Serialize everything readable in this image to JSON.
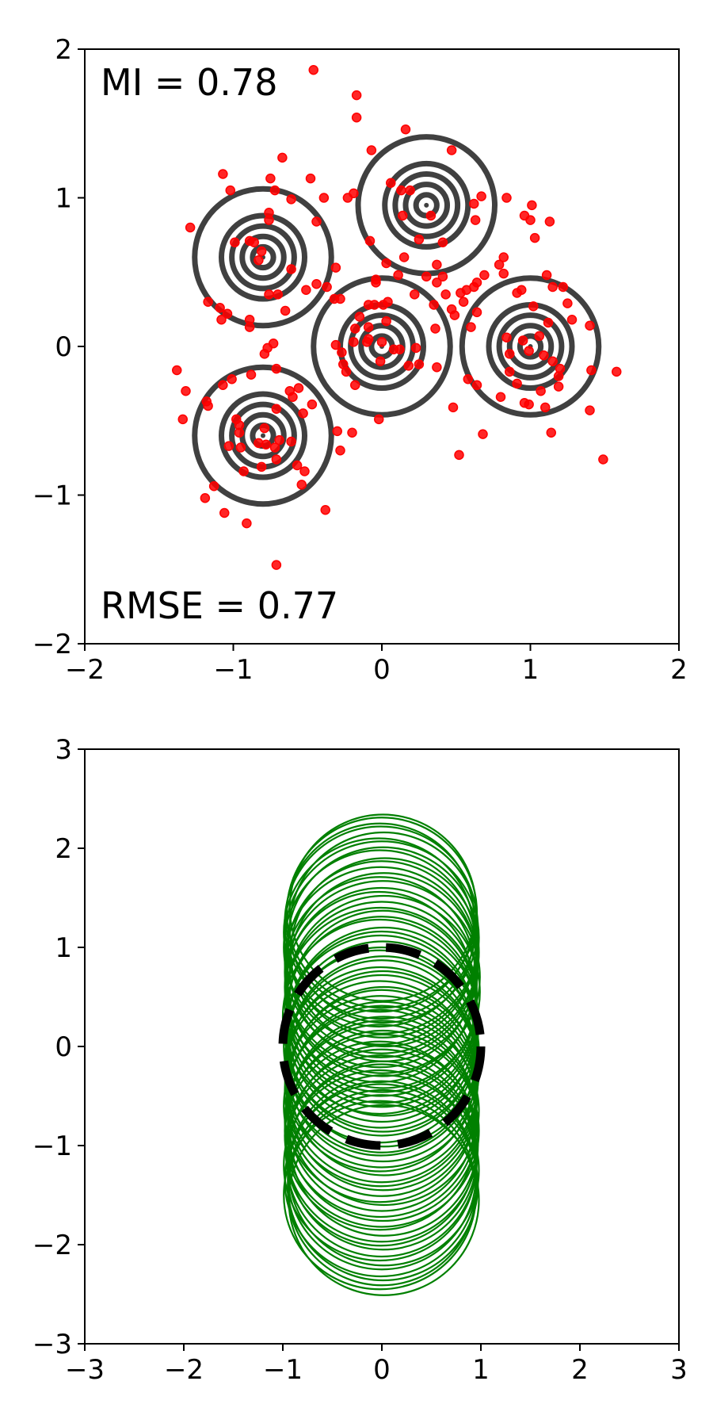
{
  "chart_data": [
    {
      "type": "scatter",
      "panel": "top",
      "xlim": [
        -2,
        2
      ],
      "ylim": [
        -2,
        2
      ],
      "xticks": [
        -2,
        -1,
        0,
        1,
        2
      ],
      "yticks": [
        -2,
        -1,
        0,
        1,
        2
      ],
      "grid": false,
      "annotations": {
        "mi": "MI = 0.78",
        "rmse": "RMSE = 0.77"
      },
      "colors": {
        "points": "#ff0000",
        "contours": "#404040"
      },
      "contour_centers": [
        {
          "x": -0.8,
          "y": 0.6
        },
        {
          "x": 0.3,
          "y": 0.95
        },
        {
          "x": 0.0,
          "y": 0.0
        },
        {
          "x": 1.0,
          "y": 0.0
        },
        {
          "x": -0.8,
          "y": -0.6
        }
      ],
      "contour_radii": [
        0.07,
        0.14,
        0.21,
        0.28
      ],
      "outer_radius": 0.46,
      "points": [
        [
          -0.46,
          1.86
        ],
        [
          -0.17,
          1.69
        ],
        [
          -0.17,
          1.54
        ],
        [
          0.16,
          1.46
        ],
        [
          -0.07,
          1.32
        ],
        [
          0.47,
          1.32
        ],
        [
          -0.67,
          1.27
        ],
        [
          0.06,
          1.1
        ],
        [
          0.13,
          1.05
        ],
        [
          0.19,
          1.05
        ],
        [
          -1.07,
          1.16
        ],
        [
          -0.75,
          1.13
        ],
        [
          -0.48,
          1.13
        ],
        [
          -1.02,
          1.05
        ],
        [
          -0.72,
          1.05
        ],
        [
          -0.61,
          0.99
        ],
        [
          -0.39,
          1.0
        ],
        [
          -0.23,
          1.0
        ],
        [
          -0.19,
          1.03
        ],
        [
          0.67,
          1.01
        ],
        [
          0.84,
          1.0
        ],
        [
          1.01,
          0.95
        ],
        [
          0.62,
          0.96
        ],
        [
          -0.76,
          0.9
        ],
        [
          0.96,
          0.88
        ],
        [
          1.0,
          0.85
        ],
        [
          1.13,
          0.84
        ],
        [
          -1.29,
          0.8
        ],
        [
          -0.76,
          0.85
        ],
        [
          -0.44,
          0.84
        ],
        [
          0.14,
          0.88
        ],
        [
          0.33,
          0.88
        ],
        [
          0.63,
          0.85
        ],
        [
          1.03,
          0.73
        ],
        [
          -0.99,
          0.7
        ],
        [
          -0.89,
          0.71
        ],
        [
          -0.86,
          0.7
        ],
        [
          -0.08,
          0.71
        ],
        [
          -0.81,
          0.64
        ],
        [
          -0.83,
          0.58
        ],
        [
          0.25,
          0.72
        ],
        [
          0.41,
          0.7
        ],
        [
          0.82,
          0.6
        ],
        [
          0.79,
          0.55
        ],
        [
          0.15,
          0.6
        ],
        [
          0.37,
          0.55
        ],
        [
          -0.61,
          0.52
        ],
        [
          0.82,
          0.49
        ],
        [
          0.03,
          0.56
        ],
        [
          -0.31,
          0.53
        ],
        [
          -0.04,
          0.45
        ],
        [
          -0.04,
          0.43
        ],
        [
          0.11,
          0.48
        ],
        [
          0.3,
          0.47
        ],
        [
          0.41,
          0.47
        ],
        [
          0.37,
          0.43
        ],
        [
          0.69,
          0.48
        ],
        [
          0.64,
          0.43
        ],
        [
          -0.44,
          0.42
        ],
        [
          -0.51,
          0.38
        ],
        [
          -0.37,
          0.4
        ],
        [
          -0.32,
          0.32
        ],
        [
          -0.28,
          0.32
        ],
        [
          0.62,
          0.4
        ],
        [
          0.57,
          0.38
        ],
        [
          0.94,
          0.38
        ],
        [
          0.91,
          0.36
        ],
        [
          1.11,
          0.48
        ],
        [
          1.15,
          0.4
        ],
        [
          1.22,
          0.4
        ],
        [
          -0.76,
          0.35
        ],
        [
          -0.7,
          0.35
        ],
        [
          0.22,
          0.35
        ],
        [
          0.43,
          0.35
        ],
        [
          0.53,
          0.36
        ],
        [
          0.55,
          0.3
        ],
        [
          -1.17,
          0.3
        ],
        [
          -1.09,
          0.26
        ],
        [
          -0.05,
          0.28
        ],
        [
          -0.09,
          0.28
        ],
        [
          0.01,
          0.28
        ],
        [
          0.04,
          0.3
        ],
        [
          0.35,
          0.28
        ],
        [
          0.47,
          0.25
        ],
        [
          -1.08,
          0.18
        ],
        [
          -1.04,
          0.22
        ],
        [
          -0.89,
          0.18
        ],
        [
          -0.65,
          0.24
        ],
        [
          -0.15,
          0.2
        ],
        [
          -0.18,
          0.12
        ],
        [
          0.36,
          0.12
        ],
        [
          0.49,
          0.21
        ],
        [
          0.64,
          0.23
        ],
        [
          1.02,
          0.27
        ],
        [
          1.25,
          0.29
        ],
        [
          0.6,
          0.13
        ],
        [
          1.28,
          0.18
        ],
        [
          -0.89,
          0.13
        ],
        [
          -0.09,
          0.13
        ],
        [
          0.03,
          0.17
        ],
        [
          1.12,
          0.16
        ],
        [
          1.4,
          0.14
        ],
        [
          -0.09,
          0.05
        ],
        [
          -0.1,
          0.03
        ],
        [
          -0.73,
          0.02
        ],
        [
          0.0,
          0.03
        ],
        [
          0.08,
          -0.02
        ],
        [
          0.12,
          -0.02
        ],
        [
          0.23,
          -0.01
        ],
        [
          0.84,
          0.06
        ],
        [
          0.95,
          0.04
        ],
        [
          1.06,
          0.07
        ],
        [
          -0.31,
          0.01
        ],
        [
          -0.27,
          -0.04
        ],
        [
          -0.77,
          -0.01
        ],
        [
          -0.19,
          0.03
        ],
        [
          -0.79,
          -0.05
        ],
        [
          0.86,
          -0.05
        ],
        [
          0.99,
          -0.03
        ],
        [
          1.09,
          -0.06
        ],
        [
          -0.26,
          -0.12
        ],
        [
          -0.24,
          -0.17
        ],
        [
          -0.01,
          -0.1
        ],
        [
          0.37,
          -0.14
        ],
        [
          1.15,
          -0.1
        ],
        [
          1.2,
          -0.15
        ],
        [
          1.19,
          -0.2
        ],
        [
          -1.38,
          -0.16
        ],
        [
          -1.01,
          -0.22
        ],
        [
          -0.88,
          -0.19
        ],
        [
          -0.71,
          -0.15
        ],
        [
          0.18,
          -0.13
        ],
        [
          0.25,
          -0.12
        ],
        [
          0.86,
          -0.17
        ],
        [
          1.41,
          -0.16
        ],
        [
          1.58,
          -0.17
        ],
        [
          -1.32,
          -0.3
        ],
        [
          -1.07,
          -0.26
        ],
        [
          -0.62,
          -0.3
        ],
        [
          -0.56,
          -0.28
        ],
        [
          -0.18,
          -0.26
        ],
        [
          0.58,
          -0.22
        ],
        [
          0.64,
          -0.26
        ],
        [
          0.91,
          -0.25
        ],
        [
          1.07,
          -0.3
        ],
        [
          1.19,
          -0.27
        ],
        [
          -1.18,
          -0.37
        ],
        [
          -0.6,
          -0.34
        ],
        [
          0.8,
          -0.34
        ],
        [
          0.96,
          -0.38
        ],
        [
          1.1,
          -0.41
        ],
        [
          -1.17,
          -0.4
        ],
        [
          -0.71,
          -0.42
        ],
        [
          -0.47,
          -0.39
        ],
        [
          0.48,
          -0.41
        ],
        [
          0.99,
          -0.39
        ],
        [
          1.4,
          -0.43
        ],
        [
          -1.34,
          -0.49
        ],
        [
          -0.98,
          -0.49
        ],
        [
          -0.53,
          -0.45
        ],
        [
          -0.96,
          -0.53
        ],
        [
          -0.79,
          -0.55
        ],
        [
          -0.3,
          -0.57
        ],
        [
          -0.02,
          -0.49
        ],
        [
          -0.96,
          -0.58
        ],
        [
          -0.2,
          -0.58
        ],
        [
          0.68,
          -0.59
        ],
        [
          1.14,
          -0.58
        ],
        [
          -0.83,
          -0.65
        ],
        [
          -0.69,
          -0.63
        ],
        [
          -0.61,
          -0.64
        ],
        [
          -1.03,
          -0.67
        ],
        [
          -0.95,
          -0.68
        ],
        [
          -0.78,
          -0.66
        ],
        [
          -0.72,
          -0.68
        ],
        [
          -0.28,
          -0.7
        ],
        [
          0.52,
          -0.73
        ],
        [
          -0.71,
          -0.76
        ],
        [
          -0.81,
          -0.81
        ],
        [
          -0.57,
          -0.8
        ],
        [
          -0.93,
          -0.84
        ],
        [
          -0.52,
          -0.84
        ],
        [
          -0.54,
          -0.93
        ],
        [
          -1.13,
          -0.94
        ],
        [
          -1.19,
          -1.02
        ],
        [
          -1.06,
          -1.12
        ],
        [
          -0.38,
          -1.1
        ],
        [
          -0.91,
          -1.19
        ],
        [
          -0.71,
          -1.47
        ],
        [
          1.49,
          -0.76
        ]
      ]
    },
    {
      "type": "line",
      "panel": "bottom",
      "xlim": [
        -3,
        3
      ],
      "ylim": [
        -3,
        3
      ],
      "xticks": [
        -3,
        -2,
        -1,
        0,
        1,
        2,
        3
      ],
      "yticks": [
        -3,
        -2,
        -1,
        0,
        1,
        2,
        3
      ],
      "grid": false,
      "colors": {
        "samples": "#008000",
        "reference": "#000000"
      },
      "reference_circle": {
        "cx": 0,
        "cy": 0,
        "r": 1,
        "style": "dashed"
      },
      "sample_circles": [
        {
          "cx": -0.02,
          "cy": 1.3,
          "rx": 0.95,
          "ry": 0.95
        },
        {
          "cx": 0.0,
          "cy": 1.35,
          "rx": 0.96,
          "ry": 0.96
        },
        {
          "cx": 0.01,
          "cy": 1.4,
          "rx": 0.94,
          "ry": 0.94
        },
        {
          "cx": -0.01,
          "cy": 1.25,
          "rx": 0.97,
          "ry": 0.97
        },
        {
          "cx": 0.02,
          "cy": 1.2,
          "rx": 0.95,
          "ry": 0.96
        },
        {
          "cx": -0.03,
          "cy": 1.15,
          "rx": 0.96,
          "ry": 0.95
        },
        {
          "cx": 0.0,
          "cy": 1.1,
          "rx": 0.98,
          "ry": 0.97
        },
        {
          "cx": 0.01,
          "cy": 1.05,
          "rx": 0.96,
          "ry": 0.96
        },
        {
          "cx": -0.02,
          "cy": 1.0,
          "rx": 0.97,
          "ry": 0.98
        },
        {
          "cx": 0.03,
          "cy": 0.95,
          "rx": 0.95,
          "ry": 0.95
        },
        {
          "cx": 0.0,
          "cy": 0.9,
          "rx": 0.96,
          "ry": 0.97
        },
        {
          "cx": -0.01,
          "cy": 0.85,
          "rx": 0.97,
          "ry": 0.96
        },
        {
          "cx": 0.02,
          "cy": 0.8,
          "rx": 0.95,
          "ry": 0.95
        },
        {
          "cx": -0.02,
          "cy": 0.75,
          "rx": 0.96,
          "ry": 0.96
        },
        {
          "cx": 0.01,
          "cy": 0.7,
          "rx": 0.98,
          "ry": 0.97
        },
        {
          "cx": 0.0,
          "cy": 0.65,
          "rx": 0.96,
          "ry": 0.95
        },
        {
          "cx": -0.03,
          "cy": 0.6,
          "rx": 0.95,
          "ry": 0.96
        },
        {
          "cx": 0.02,
          "cy": 0.55,
          "rx": 0.97,
          "ry": 0.97
        },
        {
          "cx": 0.0,
          "cy": 0.5,
          "rx": 0.96,
          "ry": 0.96
        },
        {
          "cx": -0.01,
          "cy": 0.45,
          "rx": 0.97,
          "ry": 0.95
        },
        {
          "cx": 0.01,
          "cy": 0.4,
          "rx": 0.95,
          "ry": 0.97
        },
        {
          "cx": 0.0,
          "cy": 0.35,
          "rx": 0.96,
          "ry": 0.96
        },
        {
          "cx": -0.02,
          "cy": 0.3,
          "rx": 0.98,
          "ry": 0.98
        },
        {
          "cx": 0.02,
          "cy": 0.25,
          "rx": 0.96,
          "ry": 0.95
        },
        {
          "cx": 0.0,
          "cy": 0.2,
          "rx": 0.95,
          "ry": 0.96
        },
        {
          "cx": -0.01,
          "cy": 0.15,
          "rx": 0.97,
          "ry": 0.97
        },
        {
          "cx": 0.01,
          "cy": 0.1,
          "rx": 0.96,
          "ry": 0.96
        },
        {
          "cx": 0.0,
          "cy": 0.05,
          "rx": 0.95,
          "ry": 0.95
        },
        {
          "cx": -0.02,
          "cy": 0.0,
          "rx": 0.97,
          "ry": 0.97
        },
        {
          "cx": 0.02,
          "cy": -0.05,
          "rx": 0.96,
          "ry": 0.96
        },
        {
          "cx": 0.0,
          "cy": -0.1,
          "rx": 0.95,
          "ry": 0.97
        },
        {
          "cx": -0.01,
          "cy": -0.15,
          "rx": 0.97,
          "ry": 0.95
        },
        {
          "cx": 0.01,
          "cy": -0.2,
          "rx": 0.96,
          "ry": 0.96
        },
        {
          "cx": 0.0,
          "cy": -0.25,
          "rx": 0.98,
          "ry": 0.97
        },
        {
          "cx": -0.02,
          "cy": -0.3,
          "rx": 0.96,
          "ry": 0.96
        },
        {
          "cx": 0.02,
          "cy": -0.35,
          "rx": 0.95,
          "ry": 0.95
        },
        {
          "cx": 0.0,
          "cy": -0.4,
          "rx": 0.96,
          "ry": 0.97
        },
        {
          "cx": -0.01,
          "cy": -0.45,
          "rx": 0.97,
          "ry": 0.96
        },
        {
          "cx": 0.01,
          "cy": -0.5,
          "rx": 0.95,
          "ry": 0.95
        },
        {
          "cx": 0.0,
          "cy": -0.55,
          "rx": 0.96,
          "ry": 0.96
        },
        {
          "cx": -0.02,
          "cy": -0.6,
          "rx": 0.97,
          "ry": 0.97
        },
        {
          "cx": 0.02,
          "cy": -0.65,
          "rx": 0.96,
          "ry": 0.95
        },
        {
          "cx": 0.0,
          "cy": -0.7,
          "rx": 0.95,
          "ry": 0.96
        },
        {
          "cx": -0.01,
          "cy": -0.75,
          "rx": 0.97,
          "ry": 0.97
        },
        {
          "cx": 0.01,
          "cy": -0.8,
          "rx": 0.96,
          "ry": 0.96
        },
        {
          "cx": 0.0,
          "cy": -0.85,
          "rx": 0.98,
          "ry": 0.97
        },
        {
          "cx": -0.02,
          "cy": -0.9,
          "rx": 0.96,
          "ry": 0.95
        },
        {
          "cx": 0.02,
          "cy": -0.95,
          "rx": 0.95,
          "ry": 0.96
        },
        {
          "cx": 0.0,
          "cy": -1.0,
          "rx": 0.97,
          "ry": 0.97
        },
        {
          "cx": -0.01,
          "cy": -1.05,
          "rx": 0.96,
          "ry": 0.96
        },
        {
          "cx": 0.01,
          "cy": -1.1,
          "rx": 0.95,
          "ry": 0.95
        },
        {
          "cx": 0.0,
          "cy": -1.15,
          "rx": 0.96,
          "ry": 0.97
        },
        {
          "cx": -0.02,
          "cy": -1.2,
          "rx": 0.97,
          "ry": 0.96
        },
        {
          "cx": 0.02,
          "cy": -1.25,
          "rx": 0.96,
          "ry": 0.96
        },
        {
          "cx": 0.0,
          "cy": -1.3,
          "rx": 0.95,
          "ry": 0.95
        },
        {
          "cx": -0.01,
          "cy": -1.35,
          "rx": 0.97,
          "ry": 0.97
        },
        {
          "cx": 0.01,
          "cy": -1.4,
          "rx": 0.96,
          "ry": 0.96
        },
        {
          "cx": 0.0,
          "cy": -1.45,
          "rx": 0.95,
          "ry": 0.96
        },
        {
          "cx": -0.02,
          "cy": -1.5,
          "rx": 0.97,
          "ry": 0.95
        },
        {
          "cx": 0.02,
          "cy": -1.55,
          "rx": 0.96,
          "ry": 0.96
        }
      ]
    }
  ]
}
